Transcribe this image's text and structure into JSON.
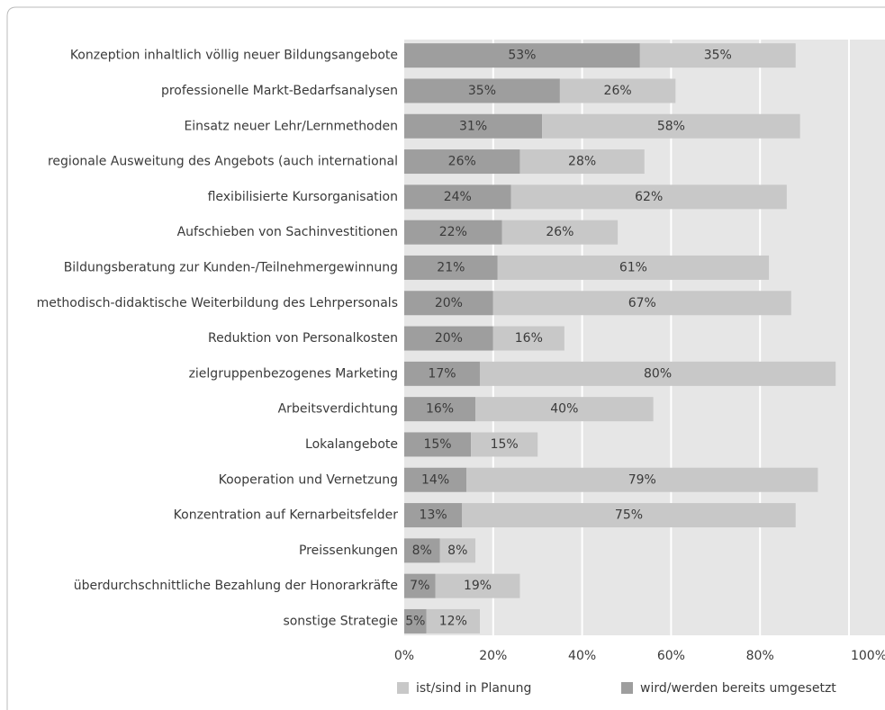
{
  "chart_data": {
    "type": "stacked-barh",
    "categories": [
      "Konzeption inhaltlich völlig neuer Bildungsangebote",
      "professionelle Markt-Bedarfsanalysen",
      "Einsatz neuer Lehr/Lernmethoden",
      "regionale Ausweitung des Angebots (auch international",
      "flexibilisierte Kursorganisation",
      "Aufschieben von Sachinvestitionen",
      "Bildungsberatung zur Kunden-/Teilnehmergewinnung",
      "methodisch-didaktische Weiterbildung des Lehrpersonals",
      "Reduktion von Personalkosten",
      "zielgruppenbezogenes Marketing",
      "Arbeitsverdichtung",
      "Lokalangebote",
      "Kooperation und Vernetzung",
      "Konzentration auf Kernarbeitsfelder",
      "Preissenkungen",
      "überdurchschnittliche Bezahlung der Honorarkräfte",
      "sonstige Strategie"
    ],
    "series": [
      {
        "name": "wird/werden bereits umgesetzt",
        "color": "#9e9e9e",
        "values": [
          53,
          35,
          31,
          26,
          24,
          22,
          21,
          20,
          20,
          17,
          16,
          15,
          14,
          13,
          8,
          7,
          5
        ],
        "value_labels": [
          "53%",
          "35%",
          "31%",
          "26%",
          "24%",
          "22%",
          "21%",
          "20%",
          "20%",
          "17%",
          "16%",
          "15%",
          "14%",
          "13%",
          "8%",
          "7%",
          "5%"
        ]
      },
      {
        "name": "ist/sind in Planung",
        "color": "#c8c8c8",
        "values": [
          35,
          26,
          58,
          28,
          62,
          26,
          61,
          67,
          16,
          80,
          40,
          15,
          79,
          75,
          8,
          19,
          12
        ],
        "value_labels": [
          "35%",
          "26%",
          "58%",
          "28%",
          "62%",
          "26%",
          "61%",
          "67%",
          "16%",
          "80%",
          "40%",
          "15%",
          "79%",
          "75%",
          "8%",
          "19%",
          "12%"
        ]
      }
    ],
    "xlim": [
      0,
      100
    ],
    "xticks": [
      {
        "value": 0,
        "label": "0%"
      },
      {
        "value": 20,
        "label": "20%"
      },
      {
        "value": 40,
        "label": "40%"
      },
      {
        "value": 60,
        "label": "60%"
      },
      {
        "value": 80,
        "label": "80%"
      },
      {
        "value": 100,
        "label": "100%"
      }
    ],
    "grid": true
  }
}
